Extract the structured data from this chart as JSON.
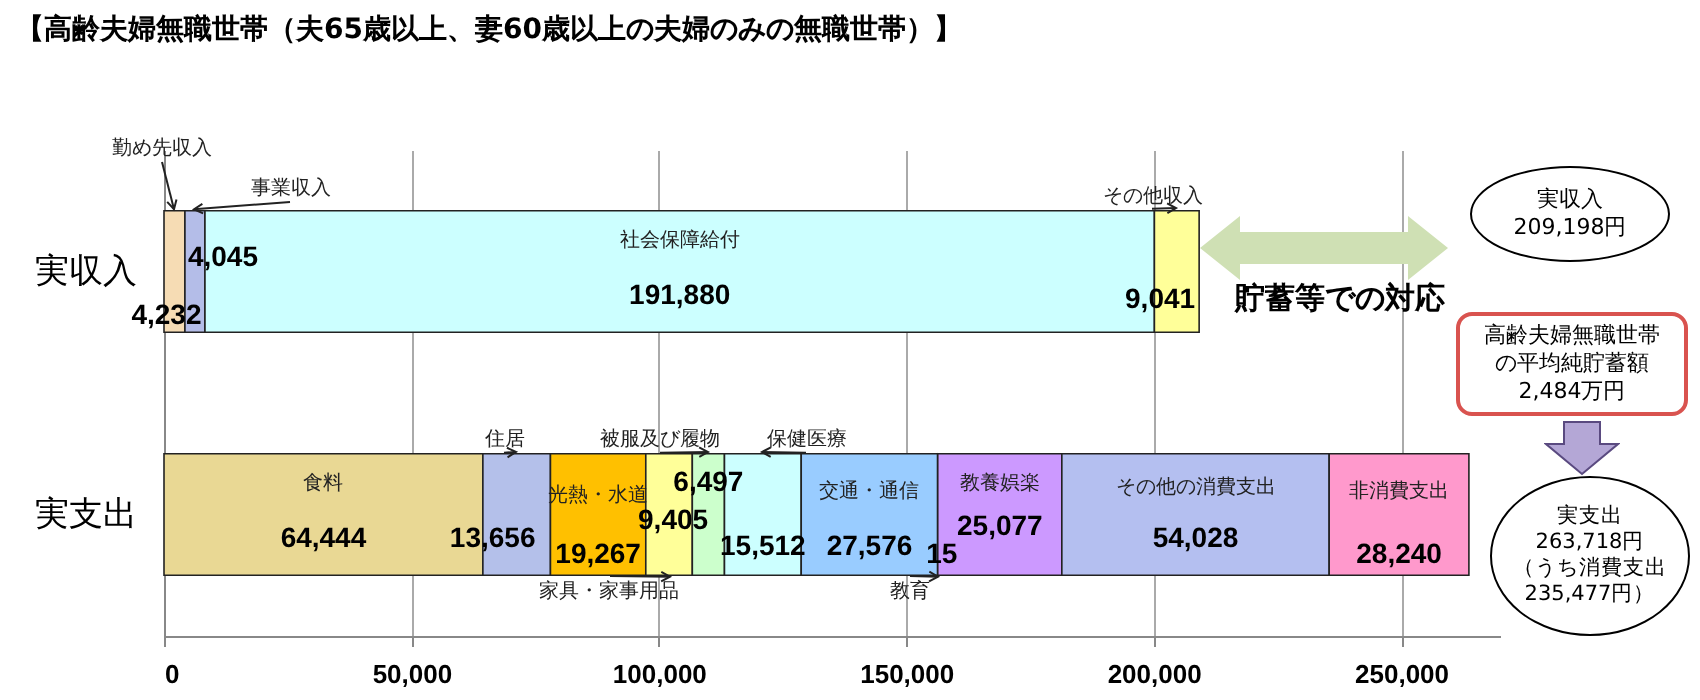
{
  "chart_data": {
    "type": "bar",
    "orientation": "horizontal",
    "stacked": true,
    "title": "【高齢夫婦無職世帯（夫65歳以上、妻60歳以上の夫婦のみの無職世帯）】",
    "categories": [
      "実収入",
      "実支出"
    ],
    "xlim": [
      0,
      270000
    ],
    "xticks": [
      0,
      {
        "value": 50000,
        "label": "50,000"
      },
      {
        "value": 100000,
        "label": "100,000"
      },
      {
        "value": 150000,
        "label": "150,000"
      },
      {
        "value": 200000,
        "label": "200,000"
      },
      {
        "value": 250000,
        "label": "250,000"
      }
    ],
    "grid": "x",
    "series": [
      {
        "name": "勤め先収入",
        "color": "#f6dcb4",
        "values": [
          4232,
          null
        ],
        "value_labels": [
          "4,232",
          null
        ]
      },
      {
        "name": "事業収入",
        "color": "#b4bde8",
        "values": [
          4045,
          null
        ],
        "value_labels": [
          "4,045",
          null
        ]
      },
      {
        "name": "社会保障給付",
        "color": "#ccffff",
        "values": [
          191880,
          null
        ],
        "value_labels": [
          "191,880",
          null
        ]
      },
      {
        "name": "その他収入",
        "color": "#ffff99",
        "values": [
          9041,
          null
        ],
        "value_labels": [
          "9,041",
          null
        ]
      },
      {
        "name": "食料",
        "color": "#e9d894",
        "values": [
          null,
          64444
        ],
        "value_labels": [
          null,
          "64,444"
        ]
      },
      {
        "name": "住居",
        "color": "#b4c0ea",
        "values": [
          null,
          13656
        ],
        "value_labels": [
          null,
          "13,656"
        ]
      },
      {
        "name": "光熱・水道",
        "color": "#ffc000",
        "values": [
          null,
          19267
        ],
        "value_labels": [
          null,
          "19,267"
        ]
      },
      {
        "name": "家具・家事用品",
        "color": "#ffff99",
        "values": [
          null,
          9405
        ],
        "value_labels": [
          null,
          "9,405"
        ]
      },
      {
        "name": "被服及び履物",
        "color": "#ccffcc",
        "values": [
          null,
          6497
        ],
        "value_labels": [
          null,
          "6,497"
        ]
      },
      {
        "name": "保健医療",
        "color": "#ccffff",
        "values": [
          null,
          15512
        ],
        "value_labels": [
          null,
          "15,512"
        ]
      },
      {
        "name": "交通・通信",
        "color": "#99ccff",
        "values": [
          null,
          27576
        ],
        "value_labels": [
          null,
          "27,576"
        ]
      },
      {
        "name": "教育",
        "color": "#ffffff",
        "values": [
          null,
          15
        ],
        "value_labels": [
          null,
          "15"
        ]
      },
      {
        "name": "教養娯楽",
        "color": "#cc99ff",
        "values": [
          null,
          25077
        ],
        "value_labels": [
          null,
          "25,077"
        ]
      },
      {
        "name": "その他の消費支出",
        "color": "#b4bff0",
        "values": [
          null,
          54028
        ],
        "value_labels": [
          null,
          "54,028"
        ]
      },
      {
        "name": "非消費支出",
        "color": "#ff99cc",
        "values": [
          null,
          28240
        ],
        "value_labels": [
          null,
          "28,240"
        ]
      }
    ],
    "annotations": [
      "貯蓄等での対応",
      "実収入\n209,198円",
      "高齢夫婦無職世帯の平均純貯蓄額\n2,484万円",
      "実支出\n263,718円（うち消費支出\n235,477円）"
    ]
  }
}
